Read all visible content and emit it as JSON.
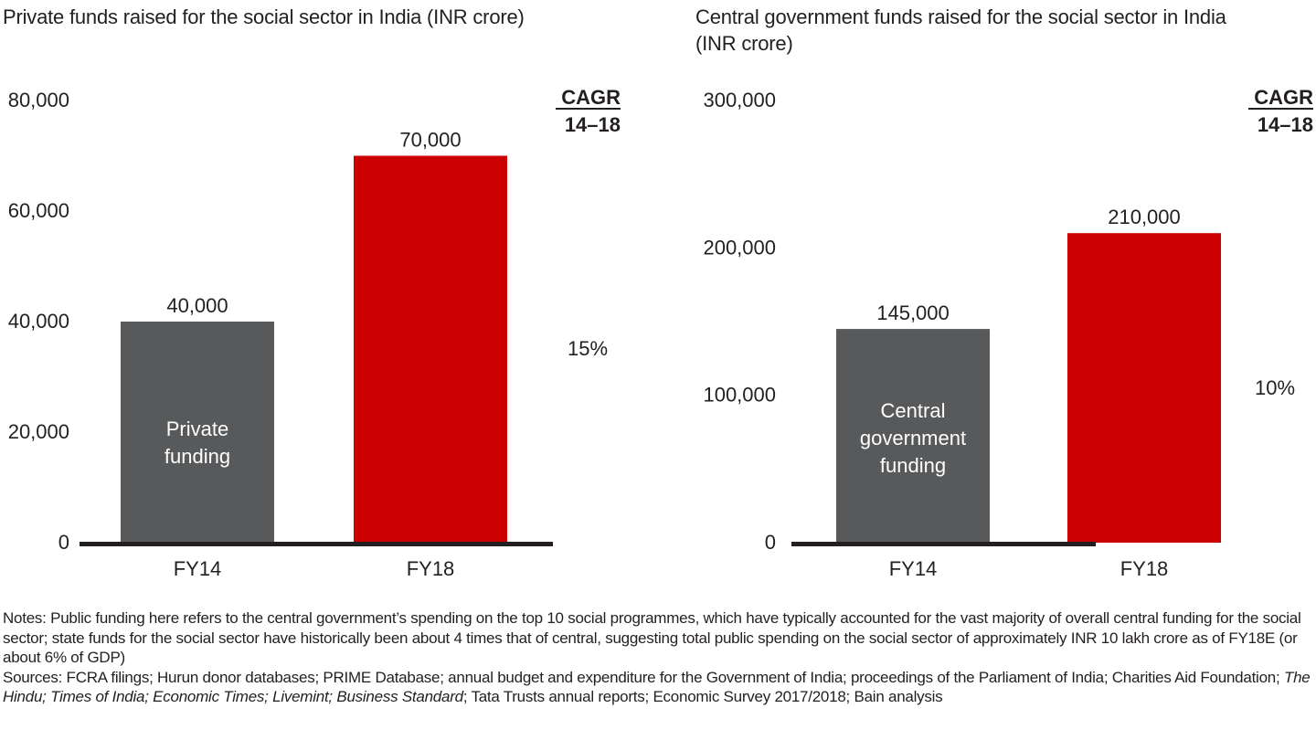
{
  "colors": {
    "base_bar": "#58595b",
    "highlight_bar": "#cc0000",
    "axis": "#231f20",
    "text": "#231f20",
    "inbar_text": "#ffffff"
  },
  "chart_data": [
    {
      "type": "bar",
      "title": "Private funds raised for the social sector in India (INR crore)",
      "categories": [
        "FY14",
        "FY18"
      ],
      "values": [
        40000,
        70000
      ],
      "value_labels": [
        "40,000",
        "70,000"
      ],
      "bar_colors": [
        "#58595b",
        "#cc0000"
      ],
      "inbar_label": [
        "Private",
        "funding"
      ],
      "yticks": [
        0,
        20000,
        40000,
        60000,
        80000
      ],
      "ytick_labels": [
        "0",
        "20,000",
        "40,000",
        "60,000",
        "80,000"
      ],
      "ylim": [
        0,
        80000
      ],
      "xlabel": "",
      "ylabel": "",
      "grid": false,
      "cagr": {
        "header_line1": "CAGR",
        "header_line2": "14–18",
        "value": "15%"
      }
    },
    {
      "type": "bar",
      "title": "Central government funds raised for the social sector in India (INR crore)",
      "title_lines": [
        "Central government funds raised for the social sector in India",
        "(INR crore)"
      ],
      "categories": [
        "FY14",
        "FY18"
      ],
      "values": [
        145000,
        210000
      ],
      "value_labels": [
        "145,000",
        "210,000"
      ],
      "bar_colors": [
        "#58595b",
        "#cc0000"
      ],
      "inbar_label": [
        "Central",
        "government",
        "funding"
      ],
      "yticks": [
        0,
        100000,
        200000,
        300000
      ],
      "ytick_labels": [
        "0",
        "100,000",
        "200,000",
        "300,000"
      ],
      "ylim": [
        0,
        300000
      ],
      "xlabel": "",
      "ylabel": "",
      "grid": false,
      "cagr": {
        "header_line1": "CAGR",
        "header_line2": "14–18",
        "value": "10%"
      }
    }
  ],
  "footer": {
    "notes": "Notes: Public funding here refers to the central government’s spending on the top 10 social programmes, which have typically accounted for the vast majority of overall central funding for the social sector; state funds for the social sector have historically been about 4 times that of central, suggesting total public spending on the social sector of approximately INR 10 lakh crore as of FY18E (or about 6% of GDP)",
    "sources_prefix": "Sources: FCRA filings; Hurun donor databases; PRIME Database; annual budget and expenditure for the Government of India; proceedings of the Parliament of India; Charities Aid Foundation; ",
    "sources_italic": "The Hindu; Times of India; Economic Times; Livemint; Business Standard",
    "sources_suffix": "; Tata Trusts annual reports; Economic Survey 2017/2018; Bain analysis"
  }
}
